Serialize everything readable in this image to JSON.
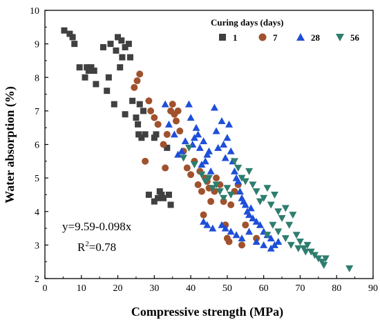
{
  "chart_data": {
    "type": "scatter",
    "xlabel": "Compressive strength (MPa)",
    "ylabel": "Water absorption (%)",
    "xlim": [
      0,
      90
    ],
    "ylim": [
      2,
      10
    ],
    "xticks": [
      "0",
      "10",
      "20",
      "30",
      "40",
      "50",
      "60",
      "70",
      "80",
      "90"
    ],
    "yticks": [
      "2",
      "3",
      "4",
      "5",
      "6",
      "7",
      "8",
      "9",
      "10"
    ],
    "legend_title": "Curing days (days)",
    "legend_position": "top-right",
    "equation": "y=9.59-0.098x",
    "r2_prefix": "R",
    "r2_sup": "2",
    "r2_suffix": "=0.78",
    "series": [
      {
        "name": "1",
        "color": "#404040",
        "marker": "square",
        "points": [
          [
            5.3,
            9.4
          ],
          [
            6.8,
            9.3
          ],
          [
            7.6,
            9.2
          ],
          [
            8.1,
            9.0
          ],
          [
            9.5,
            8.3
          ],
          [
            11.0,
            8.0
          ],
          [
            11.5,
            8.3
          ],
          [
            12.0,
            8.2
          ],
          [
            12.7,
            8.3
          ],
          [
            13.5,
            8.2
          ],
          [
            14.0,
            7.8
          ],
          [
            16.0,
            8.9
          ],
          [
            17.0,
            7.6
          ],
          [
            17.5,
            8.0
          ],
          [
            18.0,
            9.0
          ],
          [
            19.0,
            7.2
          ],
          [
            19.5,
            8.8
          ],
          [
            20.0,
            9.2
          ],
          [
            20.6,
            8.3
          ],
          [
            21.0,
            9.1
          ],
          [
            21.2,
            8.6
          ],
          [
            22.0,
            8.9
          ],
          [
            22.0,
            6.9
          ],
          [
            23.0,
            9.0
          ],
          [
            23.4,
            8.6
          ],
          [
            24.0,
            7.3
          ],
          [
            25.0,
            6.8
          ],
          [
            25.5,
            6.6
          ],
          [
            25.7,
            6.3
          ],
          [
            26.0,
            7.2
          ],
          [
            26.5,
            6.2
          ],
          [
            27.0,
            7.0
          ],
          [
            27.5,
            6.3
          ],
          [
            28.5,
            4.5
          ],
          [
            30.0,
            6.2
          ],
          [
            30.5,
            6.3
          ],
          [
            30.0,
            4.3
          ],
          [
            31.0,
            4.4
          ],
          [
            31.5,
            4.6
          ],
          [
            32.0,
            4.5
          ],
          [
            32.5,
            4.4
          ],
          [
            33.5,
            5.9
          ],
          [
            34.0,
            4.5
          ],
          [
            34.5,
            4.2
          ]
        ]
      },
      {
        "name": "7",
        "color": "#A0522D",
        "marker": "circle",
        "points": [
          [
            24.5,
            7.7
          ],
          [
            25.3,
            7.9
          ],
          [
            26.0,
            8.1
          ],
          [
            27.5,
            5.5
          ],
          [
            28.5,
            7.3
          ],
          [
            29.0,
            7.0
          ],
          [
            30.0,
            6.8
          ],
          [
            31.0,
            6.6
          ],
          [
            32.5,
            6.0
          ],
          [
            33.0,
            5.3
          ],
          [
            33.5,
            6.3
          ],
          [
            34.5,
            7.0
          ],
          [
            35.0,
            7.2
          ],
          [
            35.5,
            6.9
          ],
          [
            36.0,
            6.7
          ],
          [
            36.5,
            7.0
          ],
          [
            37.0,
            6.4
          ],
          [
            38.0,
            5.8
          ],
          [
            39.0,
            5.3
          ],
          [
            40.0,
            5.1
          ],
          [
            41.0,
            5.5
          ],
          [
            42.0,
            4.8
          ],
          [
            42.5,
            5.2
          ],
          [
            43.0,
            4.6
          ],
          [
            43.5,
            3.9
          ],
          [
            44.0,
            5.0
          ],
          [
            44.5,
            4.9
          ],
          [
            45.0,
            4.7
          ],
          [
            45.5,
            4.3
          ],
          [
            46.5,
            4.6
          ],
          [
            47.0,
            5.0
          ],
          [
            48.0,
            4.8
          ],
          [
            49.0,
            4.3
          ],
          [
            49.5,
            3.6
          ],
          [
            50.0,
            3.2
          ],
          [
            50.5,
            3.1
          ],
          [
            51.0,
            4.2
          ],
          [
            52.0,
            4.6
          ],
          [
            53.0,
            4.8
          ],
          [
            54.0,
            3.0
          ],
          [
            55.0,
            3.6
          ],
          [
            58.0,
            3.2
          ]
        ]
      },
      {
        "name": "28",
        "color": "#1F4FD8",
        "marker": "triangle-up",
        "points": [
          [
            33.0,
            7.2
          ],
          [
            34.0,
            6.6
          ],
          [
            35.5,
            6.3
          ],
          [
            36.5,
            5.7
          ],
          [
            37.5,
            5.8
          ],
          [
            38.5,
            6.1
          ],
          [
            39.5,
            7.2
          ],
          [
            40.0,
            6.8
          ],
          [
            40.5,
            6.0
          ],
          [
            41.0,
            6.2
          ],
          [
            41.5,
            6.5
          ],
          [
            42.0,
            6.3
          ],
          [
            42.5,
            5.9
          ],
          [
            43.0,
            5.4
          ],
          [
            43.5,
            6.1
          ],
          [
            44.0,
            5.5
          ],
          [
            44.5,
            5.7
          ],
          [
            45.0,
            5.8
          ],
          [
            45.5,
            5.2
          ],
          [
            46.5,
            7.1
          ],
          [
            47.0,
            6.4
          ],
          [
            47.5,
            5.9
          ],
          [
            48.5,
            6.7
          ],
          [
            49.0,
            6.0
          ],
          [
            49.5,
            5.6
          ],
          [
            50.0,
            6.2
          ],
          [
            50.5,
            6.6
          ],
          [
            51.0,
            5.8
          ],
          [
            51.5,
            5.5
          ],
          [
            52.0,
            5.2
          ],
          [
            52.5,
            5.0
          ],
          [
            53.0,
            4.9
          ],
          [
            53.5,
            4.6
          ],
          [
            54.0,
            4.4
          ],
          [
            54.5,
            4.3
          ],
          [
            55.0,
            4.2
          ],
          [
            55.5,
            4.0
          ],
          [
            56.0,
            3.9
          ],
          [
            56.5,
            4.1
          ],
          [
            57.0,
            3.8
          ],
          [
            58.0,
            3.7
          ],
          [
            59.0,
            3.6
          ],
          [
            60.0,
            3.4
          ],
          [
            61.0,
            3.3
          ],
          [
            62.0,
            3.2
          ],
          [
            63.0,
            3.0
          ],
          [
            64.0,
            3.1
          ],
          [
            48.5,
            3.6
          ],
          [
            49.5,
            3.5
          ],
          [
            51.0,
            3.4
          ],
          [
            52.5,
            3.3
          ],
          [
            54.0,
            3.2
          ],
          [
            56.0,
            3.4
          ],
          [
            58.0,
            3.1
          ],
          [
            60.0,
            3.0
          ],
          [
            62.0,
            2.9
          ],
          [
            43.5,
            3.7
          ],
          [
            44.5,
            3.6
          ],
          [
            46.0,
            3.5
          ]
        ]
      },
      {
        "name": "56",
        "color": "#2E7D6E",
        "marker": "triangle-down",
        "points": [
          [
            38.0,
            5.6
          ],
          [
            39.5,
            5.9
          ],
          [
            41.0,
            5.4
          ],
          [
            43.0,
            5.1
          ],
          [
            44.0,
            4.9
          ],
          [
            45.0,
            5.0
          ],
          [
            46.0,
            4.7
          ],
          [
            47.0,
            4.8
          ],
          [
            48.0,
            4.6
          ],
          [
            49.0,
            4.4
          ],
          [
            50.0,
            4.7
          ],
          [
            51.0,
            4.5
          ],
          [
            52.0,
            5.5
          ],
          [
            53.0,
            5.3
          ],
          [
            54.0,
            5.0
          ],
          [
            55.0,
            4.9
          ],
          [
            56.0,
            5.2
          ],
          [
            57.0,
            4.8
          ],
          [
            58.0,
            4.6
          ],
          [
            59.0,
            4.3
          ],
          [
            60.0,
            4.4
          ],
          [
            61.0,
            4.7
          ],
          [
            62.0,
            4.2
          ],
          [
            63.0,
            4.5
          ],
          [
            64.0,
            4.0
          ],
          [
            65.0,
            3.8
          ],
          [
            66.0,
            4.1
          ],
          [
            67.0,
            3.6
          ],
          [
            68.0,
            3.9
          ],
          [
            69.0,
            3.3
          ],
          [
            70.0,
            3.1
          ],
          [
            71.0,
            2.9
          ],
          [
            72.0,
            3.0
          ],
          [
            73.0,
            2.8
          ],
          [
            74.0,
            2.7
          ],
          [
            75.0,
            2.6
          ],
          [
            76.0,
            2.5
          ],
          [
            76.5,
            2.4
          ],
          [
            77.0,
            2.6
          ],
          [
            83.5,
            2.3
          ],
          [
            66.0,
            3.2
          ],
          [
            67.5,
            3.0
          ],
          [
            69.5,
            2.9
          ],
          [
            71.5,
            2.8
          ],
          [
            64.0,
            3.4
          ],
          [
            62.5,
            3.6
          ],
          [
            61.0,
            3.3
          ]
        ]
      }
    ]
  }
}
